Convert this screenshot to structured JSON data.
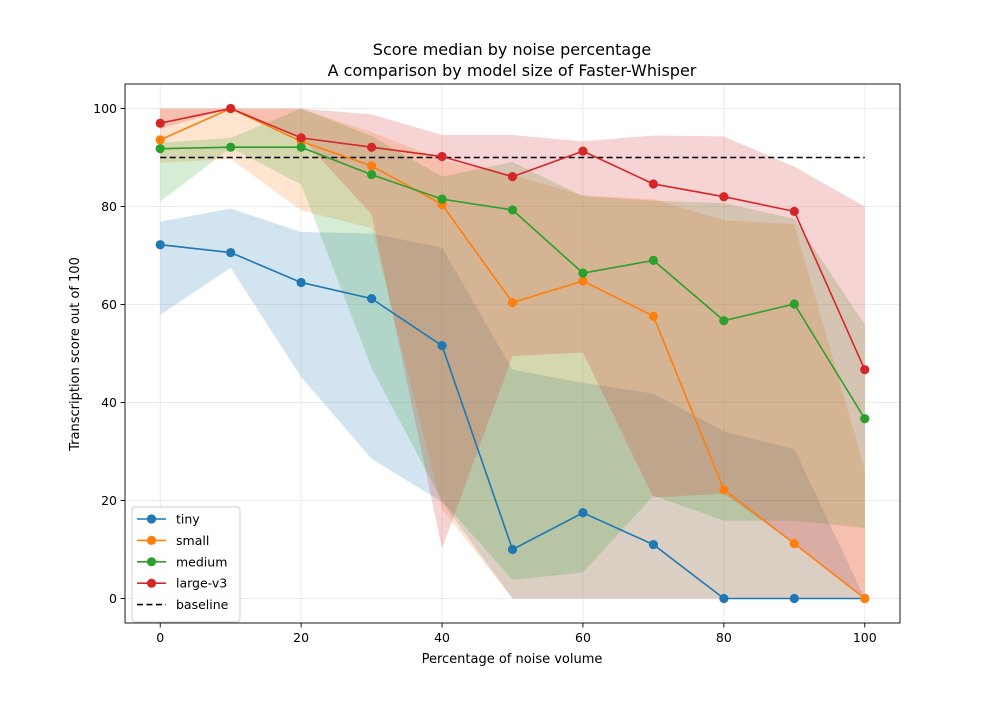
{
  "chart_data": {
    "type": "line",
    "title": "Score median by noise percentage",
    "subtitle": "A comparison by model size of Faster-Whisper",
    "xlabel": "Percentage of noise volume",
    "ylabel": "Transcription score out of 100",
    "xlim": [
      -5,
      105
    ],
    "ylim": [
      -5,
      105
    ],
    "xticks": [
      0,
      20,
      40,
      60,
      80,
      100
    ],
    "yticks": [
      0,
      20,
      40,
      60,
      80,
      100
    ],
    "grid": true,
    "legend_position": "lower-left",
    "x": [
      0,
      10,
      20,
      30,
      40,
      50,
      60,
      70,
      80,
      90,
      100
    ],
    "series": [
      {
        "name": "tiny",
        "color": "#1f77b4",
        "values": [
          72.2,
          70.6,
          64.5,
          61.2,
          51.6,
          10.0,
          17.5,
          11.0,
          0.0,
          0.0,
          0.0
        ],
        "band_upper": [
          76.9,
          79.6,
          74.8,
          74.5,
          71.6,
          46.7,
          44.0,
          41.8,
          34.1,
          30.5,
          0.0
        ],
        "band_lower": [
          57.9,
          67.5,
          45.2,
          28.5,
          19.7,
          0.0,
          0.0,
          0.0,
          0.0,
          0.0,
          0.0
        ]
      },
      {
        "name": "small",
        "color": "#ff7f0e",
        "values": [
          93.6,
          100.0,
          93.3,
          88.3,
          80.4,
          60.4,
          64.8,
          57.6,
          22.2,
          11.2,
          0.0
        ],
        "band_upper": [
          100.0,
          100.0,
          99.9,
          95.2,
          89.5,
          86.4,
          82.3,
          81.5,
          77.2,
          76.4,
          26.3
        ],
        "band_lower": [
          88.9,
          89.7,
          79.2,
          75.6,
          18.2,
          0.0,
          0.0,
          0.0,
          0.0,
          0.0,
          0.0
        ]
      },
      {
        "name": "medium",
        "color": "#2ca02c",
        "values": [
          91.8,
          92.1,
          92.1,
          86.5,
          81.5,
          79.3,
          66.4,
          69.0,
          56.7,
          60.1,
          36.7
        ],
        "band_upper": [
          93.0,
          94.0,
          100.0,
          94.4,
          86.1,
          89.1,
          82.1,
          81.2,
          80.7,
          77.5,
          55.9
        ],
        "band_lower": [
          81.0,
          92.0,
          84.5,
          47.0,
          20.0,
          3.8,
          5.3,
          21.0,
          15.9,
          15.9,
          14.4
        ]
      },
      {
        "name": "large-v3",
        "color": "#d62728",
        "values": [
          97.0,
          100.0,
          94.0,
          92.1,
          90.2,
          86.1,
          91.3,
          84.6,
          82.0,
          79.0,
          46.7
        ],
        "band_upper": [
          100.0,
          100.0,
          100.0,
          98.8,
          94.6,
          94.6,
          93.3,
          94.5,
          94.3,
          88.1,
          80.0
        ],
        "band_lower": [
          95.8,
          100.0,
          94.1,
          78.4,
          10.2,
          49.5,
          50.2,
          20.6,
          21.4,
          11.2,
          0.0
        ]
      }
    ],
    "baseline": {
      "name": "baseline",
      "color": "#000000",
      "value": 90,
      "x_range": [
        0,
        100
      ]
    }
  }
}
